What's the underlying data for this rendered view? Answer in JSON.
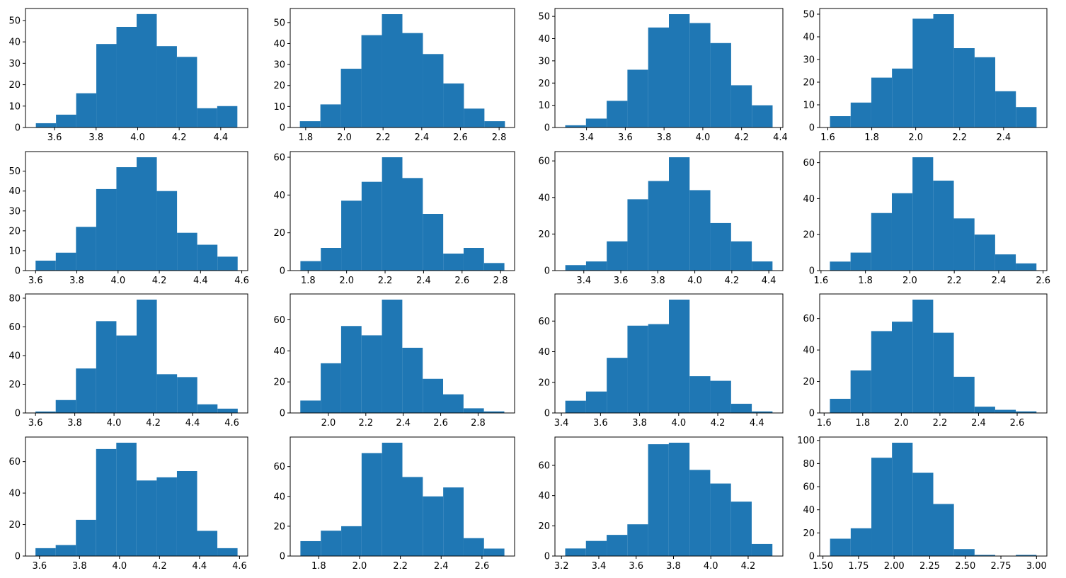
{
  "figure": {
    "bar_color": "#1f77b4",
    "axes_color": "#000000",
    "background": "#ffffff"
  },
  "chart_data": [
    {
      "type": "bar",
      "title": "",
      "xlabel": "",
      "ylabel": "",
      "bin_edges": [
        3.51,
        3.607,
        3.704,
        3.801,
        3.898,
        3.995,
        4.092,
        4.189,
        4.286,
        4.383,
        4.48
      ],
      "values": [
        2,
        6,
        16,
        39,
        47,
        53,
        38,
        33,
        9,
        10
      ],
      "xlim": [
        3.46,
        4.53
      ],
      "ylim": [
        0,
        55.6
      ],
      "xticks": [
        3.6,
        3.8,
        4.0,
        4.2,
        4.4
      ],
      "xtick_labels": [
        "3.6",
        "3.8",
        "4.0",
        "4.2",
        "4.4"
      ],
      "yticks": [
        0,
        10,
        20,
        30,
        40,
        50
      ],
      "ytick_labels": [
        "0",
        "10",
        "20",
        "30",
        "40",
        "50"
      ]
    },
    {
      "type": "bar",
      "title": "",
      "xlabel": "",
      "ylabel": "",
      "bin_edges": [
        1.77,
        1.876,
        1.982,
        2.088,
        2.194,
        2.3,
        2.406,
        2.512,
        2.618,
        2.724,
        2.83
      ],
      "values": [
        3,
        11,
        28,
        44,
        54,
        45,
        35,
        21,
        9,
        3
      ],
      "xlim": [
        1.72,
        2.88
      ],
      "ylim": [
        0,
        56.7
      ],
      "xticks": [
        1.8,
        2.0,
        2.2,
        2.4,
        2.6,
        2.8
      ],
      "xtick_labels": [
        "1.8",
        "2.0",
        "2.2",
        "2.4",
        "2.6",
        "2.8"
      ],
      "yticks": [
        0,
        10,
        20,
        30,
        40,
        50
      ],
      "ytick_labels": [
        "0",
        "10",
        "20",
        "30",
        "40",
        "50"
      ]
    },
    {
      "type": "bar",
      "title": "",
      "xlabel": "",
      "ylabel": "",
      "bin_edges": [
        3.29,
        3.397,
        3.504,
        3.611,
        3.718,
        3.825,
        3.932,
        4.039,
        4.146,
        4.253,
        4.36
      ],
      "values": [
        1,
        4,
        12,
        26,
        45,
        51,
        47,
        38,
        19,
        10
      ],
      "xlim": [
        3.237,
        4.413
      ],
      "ylim": [
        0,
        53.55
      ],
      "xticks": [
        3.4,
        3.6,
        3.8,
        4.0,
        4.2,
        4.4
      ],
      "xtick_labels": [
        "3.4",
        "3.6",
        "3.8",
        "4.0",
        "4.2",
        "4.4"
      ],
      "yticks": [
        0,
        10,
        20,
        30,
        40,
        50
      ],
      "ytick_labels": [
        "0",
        "10",
        "20",
        "30",
        "40",
        "50"
      ]
    },
    {
      "type": "bar",
      "title": "",
      "xlabel": "",
      "ylabel": "",
      "bin_edges": [
        1.61,
        1.704,
        1.798,
        1.892,
        1.986,
        2.08,
        2.174,
        2.268,
        2.362,
        2.456,
        2.55
      ],
      "values": [
        5,
        11,
        22,
        26,
        48,
        50,
        35,
        31,
        16,
        9
      ],
      "xlim": [
        1.563,
        2.597
      ],
      "ylim": [
        0,
        52.5
      ],
      "xticks": [
        1.6,
        1.8,
        2.0,
        2.2,
        2.4
      ],
      "xtick_labels": [
        "1.6",
        "1.8",
        "2.0",
        "2.2",
        "2.4"
      ],
      "yticks": [
        0,
        10,
        20,
        30,
        40,
        50
      ],
      "ytick_labels": [
        "0",
        "10",
        "20",
        "30",
        "40",
        "50"
      ]
    },
    {
      "type": "bar",
      "title": "",
      "xlabel": "",
      "ylabel": "",
      "bin_edges": [
        3.6,
        3.698,
        3.796,
        3.894,
        3.992,
        4.09,
        4.188,
        4.286,
        4.384,
        4.482,
        4.58
      ],
      "values": [
        5,
        9,
        22,
        41,
        52,
        57,
        40,
        19,
        13,
        7
      ],
      "xlim": [
        3.551,
        4.629
      ],
      "ylim": [
        0,
        59.85
      ],
      "xticks": [
        3.6,
        3.8,
        4.0,
        4.2,
        4.4,
        4.6
      ],
      "xtick_labels": [
        "3.6",
        "3.8",
        "4.0",
        "4.2",
        "4.4",
        "4.6"
      ],
      "yticks": [
        0,
        10,
        20,
        30,
        40,
        50
      ],
      "ytick_labels": [
        "0",
        "10",
        "20",
        "30",
        "40",
        "50"
      ]
    },
    {
      "type": "bar",
      "title": "",
      "xlabel": "",
      "ylabel": "",
      "bin_edges": [
        1.76,
        1.866,
        1.972,
        2.078,
        2.184,
        2.29,
        2.396,
        2.502,
        2.608,
        2.714,
        2.82
      ],
      "values": [
        5,
        12,
        37,
        47,
        60,
        49,
        30,
        9,
        12,
        4
      ],
      "xlim": [
        1.707,
        2.873
      ],
      "ylim": [
        0,
        63
      ],
      "xticks": [
        1.8,
        2.0,
        2.2,
        2.4,
        2.6,
        2.8
      ],
      "xtick_labels": [
        "1.8",
        "2.0",
        "2.2",
        "2.4",
        "2.6",
        "2.8"
      ],
      "yticks": [
        0,
        20,
        40,
        60
      ],
      "ytick_labels": [
        "0",
        "20",
        "40",
        "60"
      ]
    },
    {
      "type": "bar",
      "title": "",
      "xlabel": "",
      "ylabel": "",
      "bin_edges": [
        3.3,
        3.412,
        3.524,
        3.636,
        3.748,
        3.86,
        3.972,
        4.084,
        4.196,
        4.308,
        4.42
      ],
      "values": [
        3,
        5,
        16,
        39,
        49,
        62,
        44,
        26,
        16,
        5
      ],
      "xlim": [
        3.244,
        4.476
      ],
      "ylim": [
        0,
        65.1
      ],
      "xticks": [
        3.4,
        3.6,
        3.8,
        4.0,
        4.2,
        4.4
      ],
      "xtick_labels": [
        "3.4",
        "3.6",
        "3.8",
        "4.0",
        "4.2",
        "4.4"
      ],
      "yticks": [
        0,
        20,
        40,
        60
      ],
      "ytick_labels": [
        "0",
        "20",
        "40",
        "60"
      ]
    },
    {
      "type": "bar",
      "title": "",
      "xlabel": "",
      "ylabel": "",
      "bin_edges": [
        1.64,
        1.733,
        1.826,
        1.919,
        2.012,
        2.105,
        2.198,
        2.291,
        2.384,
        2.477,
        2.57
      ],
      "values": [
        5,
        10,
        32,
        43,
        63,
        50,
        29,
        20,
        9,
        4
      ],
      "xlim": [
        1.594,
        2.617
      ],
      "ylim": [
        0,
        66.15
      ],
      "xticks": [
        1.6,
        1.8,
        2.0,
        2.2,
        2.4,
        2.6
      ],
      "xtick_labels": [
        "1.6",
        "1.8",
        "2.0",
        "2.2",
        "2.4",
        "2.6"
      ],
      "yticks": [
        0,
        20,
        40,
        60
      ],
      "ytick_labels": [
        "0",
        "20",
        "40",
        "60"
      ]
    },
    {
      "type": "bar",
      "title": "",
      "xlabel": "",
      "ylabel": "",
      "bin_edges": [
        3.6,
        3.703,
        3.806,
        3.909,
        4.012,
        4.115,
        4.218,
        4.321,
        4.424,
        4.527,
        4.63
      ],
      "values": [
        1,
        9,
        31,
        64,
        54,
        79,
        27,
        25,
        6,
        3
      ],
      "xlim": [
        3.549,
        4.681
      ],
      "ylim": [
        0,
        82.95
      ],
      "xticks": [
        3.6,
        3.8,
        4.0,
        4.2,
        4.4,
        4.6
      ],
      "xtick_labels": [
        "3.6",
        "3.8",
        "4.0",
        "4.2",
        "4.4",
        "4.6"
      ],
      "yticks": [
        0,
        20,
        40,
        60,
        80
      ],
      "ytick_labels": [
        "0",
        "20",
        "40",
        "60",
        "80"
      ]
    },
    {
      "type": "bar",
      "title": "",
      "xlabel": "",
      "ylabel": "",
      "bin_edges": [
        1.85,
        1.959,
        2.068,
        2.177,
        2.286,
        2.395,
        2.504,
        2.613,
        2.722,
        2.831,
        2.94
      ],
      "values": [
        8,
        32,
        56,
        50,
        73,
        42,
        22,
        12,
        3,
        1
      ],
      "xlim": [
        1.796,
        2.995
      ],
      "ylim": [
        0,
        76.65
      ],
      "xticks": [
        2.0,
        2.2,
        2.4,
        2.6,
        2.8
      ],
      "xtick_labels": [
        "2.0",
        "2.2",
        "2.4",
        "2.6",
        "2.8"
      ],
      "yticks": [
        0,
        20,
        40,
        60
      ],
      "ytick_labels": [
        "0",
        "20",
        "40",
        "60"
      ]
    },
    {
      "type": "bar",
      "title": "",
      "xlabel": "",
      "ylabel": "",
      "bin_edges": [
        3.42,
        3.526,
        3.632,
        3.738,
        3.844,
        3.95,
        4.056,
        4.162,
        4.268,
        4.374,
        4.48
      ],
      "values": [
        8,
        14,
        36,
        57,
        58,
        74,
        24,
        21,
        6,
        1
      ],
      "xlim": [
        3.367,
        4.533
      ],
      "ylim": [
        0,
        77.7
      ],
      "xticks": [
        3.4,
        3.6,
        3.8,
        4.0,
        4.2,
        4.4
      ],
      "xtick_labels": [
        "3.4",
        "3.6",
        "3.8",
        "4.0",
        "4.2",
        "4.4"
      ],
      "yticks": [
        0,
        20,
        40,
        60
      ],
      "ytick_labels": [
        "0",
        "20",
        "40",
        "60"
      ]
    },
    {
      "type": "bar",
      "title": "",
      "xlabel": "",
      "ylabel": "",
      "bin_edges": [
        1.63,
        1.737,
        1.844,
        1.951,
        2.058,
        2.165,
        2.272,
        2.379,
        2.486,
        2.593,
        2.7
      ],
      "values": [
        9,
        27,
        52,
        58,
        72,
        51,
        23,
        4,
        2,
        1
      ],
      "xlim": [
        1.577,
        2.754
      ],
      "ylim": [
        0,
        75.6
      ],
      "xticks": [
        1.6,
        1.8,
        2.0,
        2.2,
        2.4,
        2.6
      ],
      "xtick_labels": [
        "1.6",
        "1.8",
        "2.0",
        "2.2",
        "2.4",
        "2.6"
      ],
      "yticks": [
        0,
        20,
        40,
        60
      ],
      "ytick_labels": [
        "0",
        "20",
        "40",
        "60"
      ]
    },
    {
      "type": "bar",
      "title": "",
      "xlabel": "",
      "ylabel": "",
      "bin_edges": [
        3.58,
        3.681,
        3.782,
        3.883,
        3.984,
        4.085,
        4.186,
        4.287,
        4.388,
        4.489,
        4.59
      ],
      "values": [
        5,
        7,
        23,
        68,
        72,
        48,
        50,
        54,
        16,
        5
      ],
      "xlim": [
        3.53,
        4.641
      ],
      "ylim": [
        0,
        75.6
      ],
      "xticks": [
        3.6,
        3.8,
        4.0,
        4.2,
        4.4,
        4.6
      ],
      "xtick_labels": [
        "3.6",
        "3.8",
        "4.0",
        "4.2",
        "4.4",
        "4.6"
      ],
      "yticks": [
        0,
        20,
        40,
        60
      ],
      "ytick_labels": [
        "0",
        "20",
        "40",
        "60"
      ]
    },
    {
      "type": "bar",
      "title": "",
      "xlabel": "",
      "ylabel": "",
      "bin_edges": [
        1.71,
        1.81,
        1.91,
        2.01,
        2.11,
        2.21,
        2.31,
        2.41,
        2.51,
        2.61,
        2.71
      ],
      "values": [
        10,
        17,
        20,
        69,
        76,
        53,
        40,
        46,
        12,
        5
      ],
      "xlim": [
        1.66,
        2.76
      ],
      "ylim": [
        0,
        79.8
      ],
      "xticks": [
        1.8,
        2.0,
        2.2,
        2.4,
        2.6
      ],
      "xtick_labels": [
        "1.8",
        "2.0",
        "2.2",
        "2.4",
        "2.6"
      ],
      "yticks": [
        0,
        20,
        40,
        60
      ],
      "ytick_labels": [
        "0",
        "20",
        "40",
        "60"
      ]
    },
    {
      "type": "bar",
      "title": "",
      "xlabel": "",
      "ylabel": "",
      "bin_edges": [
        3.22,
        3.331,
        3.442,
        3.553,
        3.664,
        3.775,
        3.886,
        3.997,
        4.108,
        4.219,
        4.33
      ],
      "values": [
        5,
        10,
        14,
        21,
        74,
        75,
        57,
        48,
        36,
        8
      ],
      "xlim": [
        3.165,
        4.386
      ],
      "ylim": [
        0,
        78.75
      ],
      "xticks": [
        3.2,
        3.4,
        3.6,
        3.8,
        4.0,
        4.2
      ],
      "xtick_labels": [
        "3.2",
        "3.4",
        "3.6",
        "3.8",
        "4.0",
        "4.2"
      ],
      "yticks": [
        0,
        20,
        40,
        60
      ],
      "ytick_labels": [
        "0",
        "20",
        "40",
        "60"
      ]
    },
    {
      "type": "bar",
      "title": "",
      "xlabel": "",
      "ylabel": "",
      "bin_edges": [
        1.55,
        1.695,
        1.84,
        1.985,
        2.13,
        2.275,
        2.42,
        2.565,
        2.71,
        2.855,
        3.0
      ],
      "values": [
        15,
        24,
        85,
        98,
        72,
        45,
        6,
        1,
        0,
        1
      ],
      "xlim": [
        1.477,
        3.073
      ],
      "ylim": [
        0,
        102.9
      ],
      "xticks": [
        1.5,
        1.75,
        2.0,
        2.25,
        2.5,
        2.75,
        3.0
      ],
      "xtick_labels": [
        "1.50",
        "1.75",
        "2.00",
        "2.25",
        "2.50",
        "2.75",
        "3.00"
      ],
      "yticks": [
        0,
        20,
        40,
        60,
        80,
        100
      ],
      "ytick_labels": [
        "0",
        "20",
        "40",
        "60",
        "80",
        "100"
      ]
    }
  ]
}
